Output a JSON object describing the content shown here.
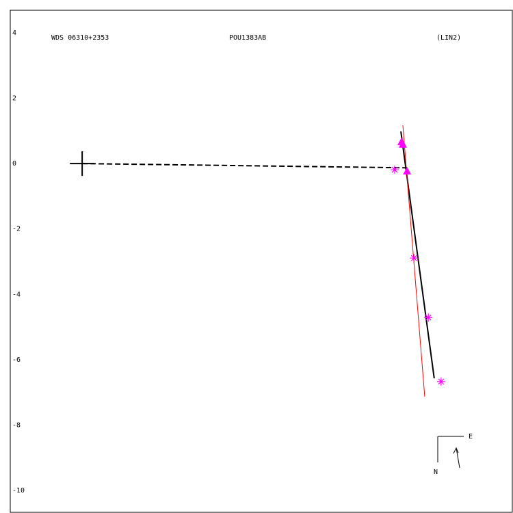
{
  "chart_data": {
    "type": "scatter",
    "title": "WDS 06310+2353",
    "subtitle": "POU1383AB",
    "annotation": "(LIN2)",
    "compass": {
      "east": "E",
      "north": "N"
    },
    "xlim": [
      -2.2,
      13.18
    ],
    "ylim": [
      -10.69,
      4.69
    ],
    "yticks": [
      4,
      2,
      0,
      -2,
      -4,
      -6,
      -8,
      -10
    ],
    "origin": {
      "x": 0,
      "y": 0
    },
    "series": [
      {
        "marker": "star",
        "color": "#ff00ff",
        "x": [
          9.56,
          10.15,
          10.59,
          10.98
        ],
        "y": [
          -0.19,
          -2.89,
          -4.71,
          -6.67
        ]
      },
      {
        "marker": "triangle",
        "color": "#ff00ff",
        "x": [
          9.77,
          9.81,
          9.94
        ],
        "y": [
          0.67,
          0.59,
          -0.23
        ]
      }
    ],
    "lines": [
      {
        "style": "solid",
        "color": "#000000",
        "width": 2,
        "x": [
          9.75,
          10.77
        ],
        "y": [
          0.98,
          -6.57
        ]
      },
      {
        "style": "solid",
        "color": "#ff0000",
        "width": 1,
        "x": [
          9.81,
          10.48
        ],
        "y": [
          1.17,
          -7.13
        ]
      },
      {
        "style": "dashed",
        "color": "#000000",
        "width": 2,
        "x": [
          0,
          9.94
        ],
        "y": [
          0,
          -0.13
        ]
      }
    ]
  }
}
